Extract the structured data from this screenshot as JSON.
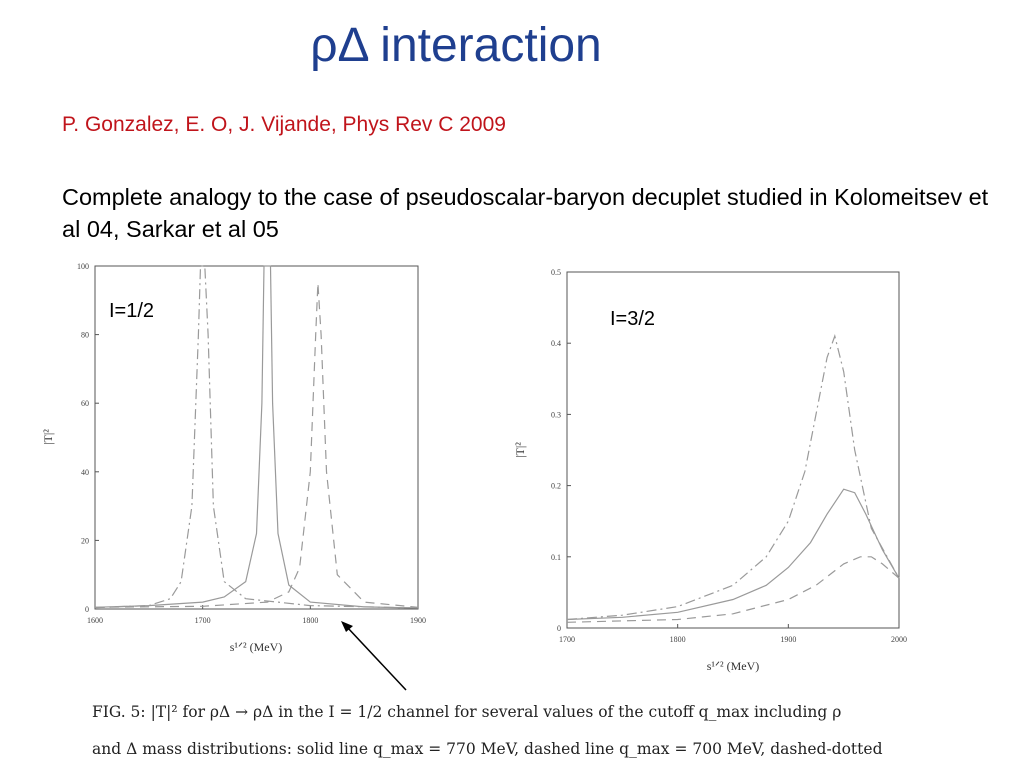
{
  "slide": {
    "title": "ρΔ interaction",
    "citation": "P. Gonzalez, E. O, J. Vijande, Phys Rev C 2009",
    "body": "Complete analogy to the case of pseudoscalar-baryon decuplet studied in Kolomeitsev et al 04,  Sarkar et al 05"
  },
  "panel_labels": {
    "left": "I=1/2",
    "right": "I=3/2"
  },
  "caption": {
    "line1": "FIG. 5: |T|² for ρΔ → ρΔ in the I = 1/2 channel for several values of the cutoff q_max including ρ",
    "line2": "and Δ mass distributions: solid line q_max = 770 MeV, dashed line q_max = 700 MeV, dashed-dotted"
  },
  "colors": {
    "title": "#1f3f8f",
    "citation": "#c0141b",
    "curves": "#9a9a9a",
    "arrow": "#000000"
  },
  "chart_data": [
    {
      "type": "line",
      "xlabel": "s¹ᐟ² (MeV)",
      "ylabel": "|T|²",
      "xlim": [
        1600,
        1900
      ],
      "ylim": [
        0,
        100
      ],
      "xticks": [
        "1600",
        "1700",
        "1800",
        "1900"
      ],
      "yticks": [
        "0",
        "20",
        "40",
        "60",
        "80",
        "100"
      ],
      "series": [
        {
          "style": "solid",
          "x": [
            1600,
            1650,
            1700,
            1720,
            1740,
            1750,
            1755,
            1757,
            1760,
            1763,
            1765,
            1770,
            1780,
            1800,
            1850,
            1900
          ],
          "y": [
            0.5,
            1,
            2,
            3.5,
            8,
            22,
            60,
            100,
            100,
            100,
            60,
            22,
            7,
            2,
            0.6,
            0.3
          ]
        },
        {
          "style": "dashed",
          "x": [
            1600,
            1700,
            1760,
            1780,
            1790,
            1800,
            1805,
            1807,
            1810,
            1815,
            1825,
            1850,
            1900
          ],
          "y": [
            0.5,
            0.8,
            2,
            5,
            12,
            40,
            80,
            95,
            80,
            40,
            10,
            2,
            0.5
          ]
        },
        {
          "style": "dashdot",
          "x": [
            1600,
            1650,
            1670,
            1680,
            1690,
            1696,
            1698,
            1700,
            1702,
            1705,
            1710,
            1720,
            1740,
            1800,
            1900
          ],
          "y": [
            0.4,
            1,
            3,
            8,
            30,
            80,
            100,
            100,
            100,
            80,
            30,
            8,
            3,
            1,
            0.3
          ]
        }
      ]
    },
    {
      "type": "line",
      "xlabel": "s¹ᐟ² (MeV)",
      "ylabel": "|T|²",
      "xlim": [
        1700,
        2000
      ],
      "ylim": [
        0,
        0.5
      ],
      "xticks": [
        "1700",
        "1800",
        "1900",
        "2000"
      ],
      "yticks": [
        "0",
        "0.1",
        "0.2",
        "0.3",
        "0.4",
        "0.5"
      ],
      "series": [
        {
          "style": "solid",
          "x": [
            1700,
            1750,
            1800,
            1850,
            1880,
            1900,
            1920,
            1935,
            1950,
            1960,
            1970,
            1985,
            2000
          ],
          "y": [
            0.012,
            0.015,
            0.022,
            0.04,
            0.06,
            0.085,
            0.12,
            0.16,
            0.195,
            0.19,
            0.16,
            0.11,
            0.07
          ]
        },
        {
          "style": "dashed",
          "x": [
            1700,
            1800,
            1850,
            1900,
            1925,
            1950,
            1965,
            1975,
            1985,
            2000
          ],
          "y": [
            0.008,
            0.012,
            0.02,
            0.04,
            0.06,
            0.09,
            0.1,
            0.1,
            0.09,
            0.07
          ]
        },
        {
          "style": "dashdot",
          "x": [
            1700,
            1750,
            1800,
            1850,
            1880,
            1900,
            1915,
            1925,
            1935,
            1942,
            1950,
            1960,
            1975,
            2000
          ],
          "y": [
            0.012,
            0.018,
            0.03,
            0.06,
            0.1,
            0.15,
            0.22,
            0.3,
            0.38,
            0.41,
            0.36,
            0.25,
            0.14,
            0.07
          ]
        }
      ]
    }
  ]
}
